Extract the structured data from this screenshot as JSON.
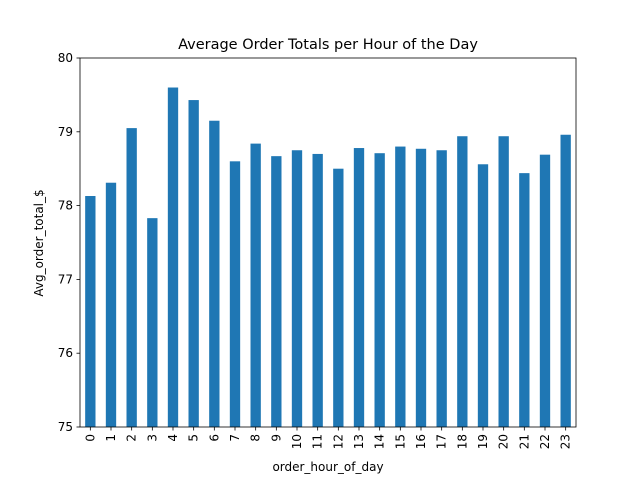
{
  "chart_data": {
    "type": "bar",
    "title": "Average Order Totals per Hour of the Day",
    "xlabel": "order_hour_of_day",
    "ylabel": "Avg_order_total_$",
    "categories": [
      "0",
      "1",
      "2",
      "3",
      "4",
      "5",
      "6",
      "7",
      "8",
      "9",
      "10",
      "11",
      "12",
      "13",
      "14",
      "15",
      "16",
      "17",
      "18",
      "19",
      "20",
      "21",
      "22",
      "23"
    ],
    "values": [
      78.13,
      78.31,
      79.05,
      77.83,
      79.6,
      79.43,
      79.15,
      78.6,
      78.84,
      78.67,
      78.75,
      78.7,
      78.5,
      78.78,
      78.71,
      78.8,
      78.77,
      78.75,
      78.94,
      78.56,
      78.94,
      78.44,
      78.69,
      78.96
    ],
    "ylim": [
      75,
      80
    ],
    "yticks": [
      75,
      76,
      77,
      78,
      79,
      80
    ],
    "grid": false,
    "legend": "none",
    "bar_color": "#1f77b4"
  }
}
